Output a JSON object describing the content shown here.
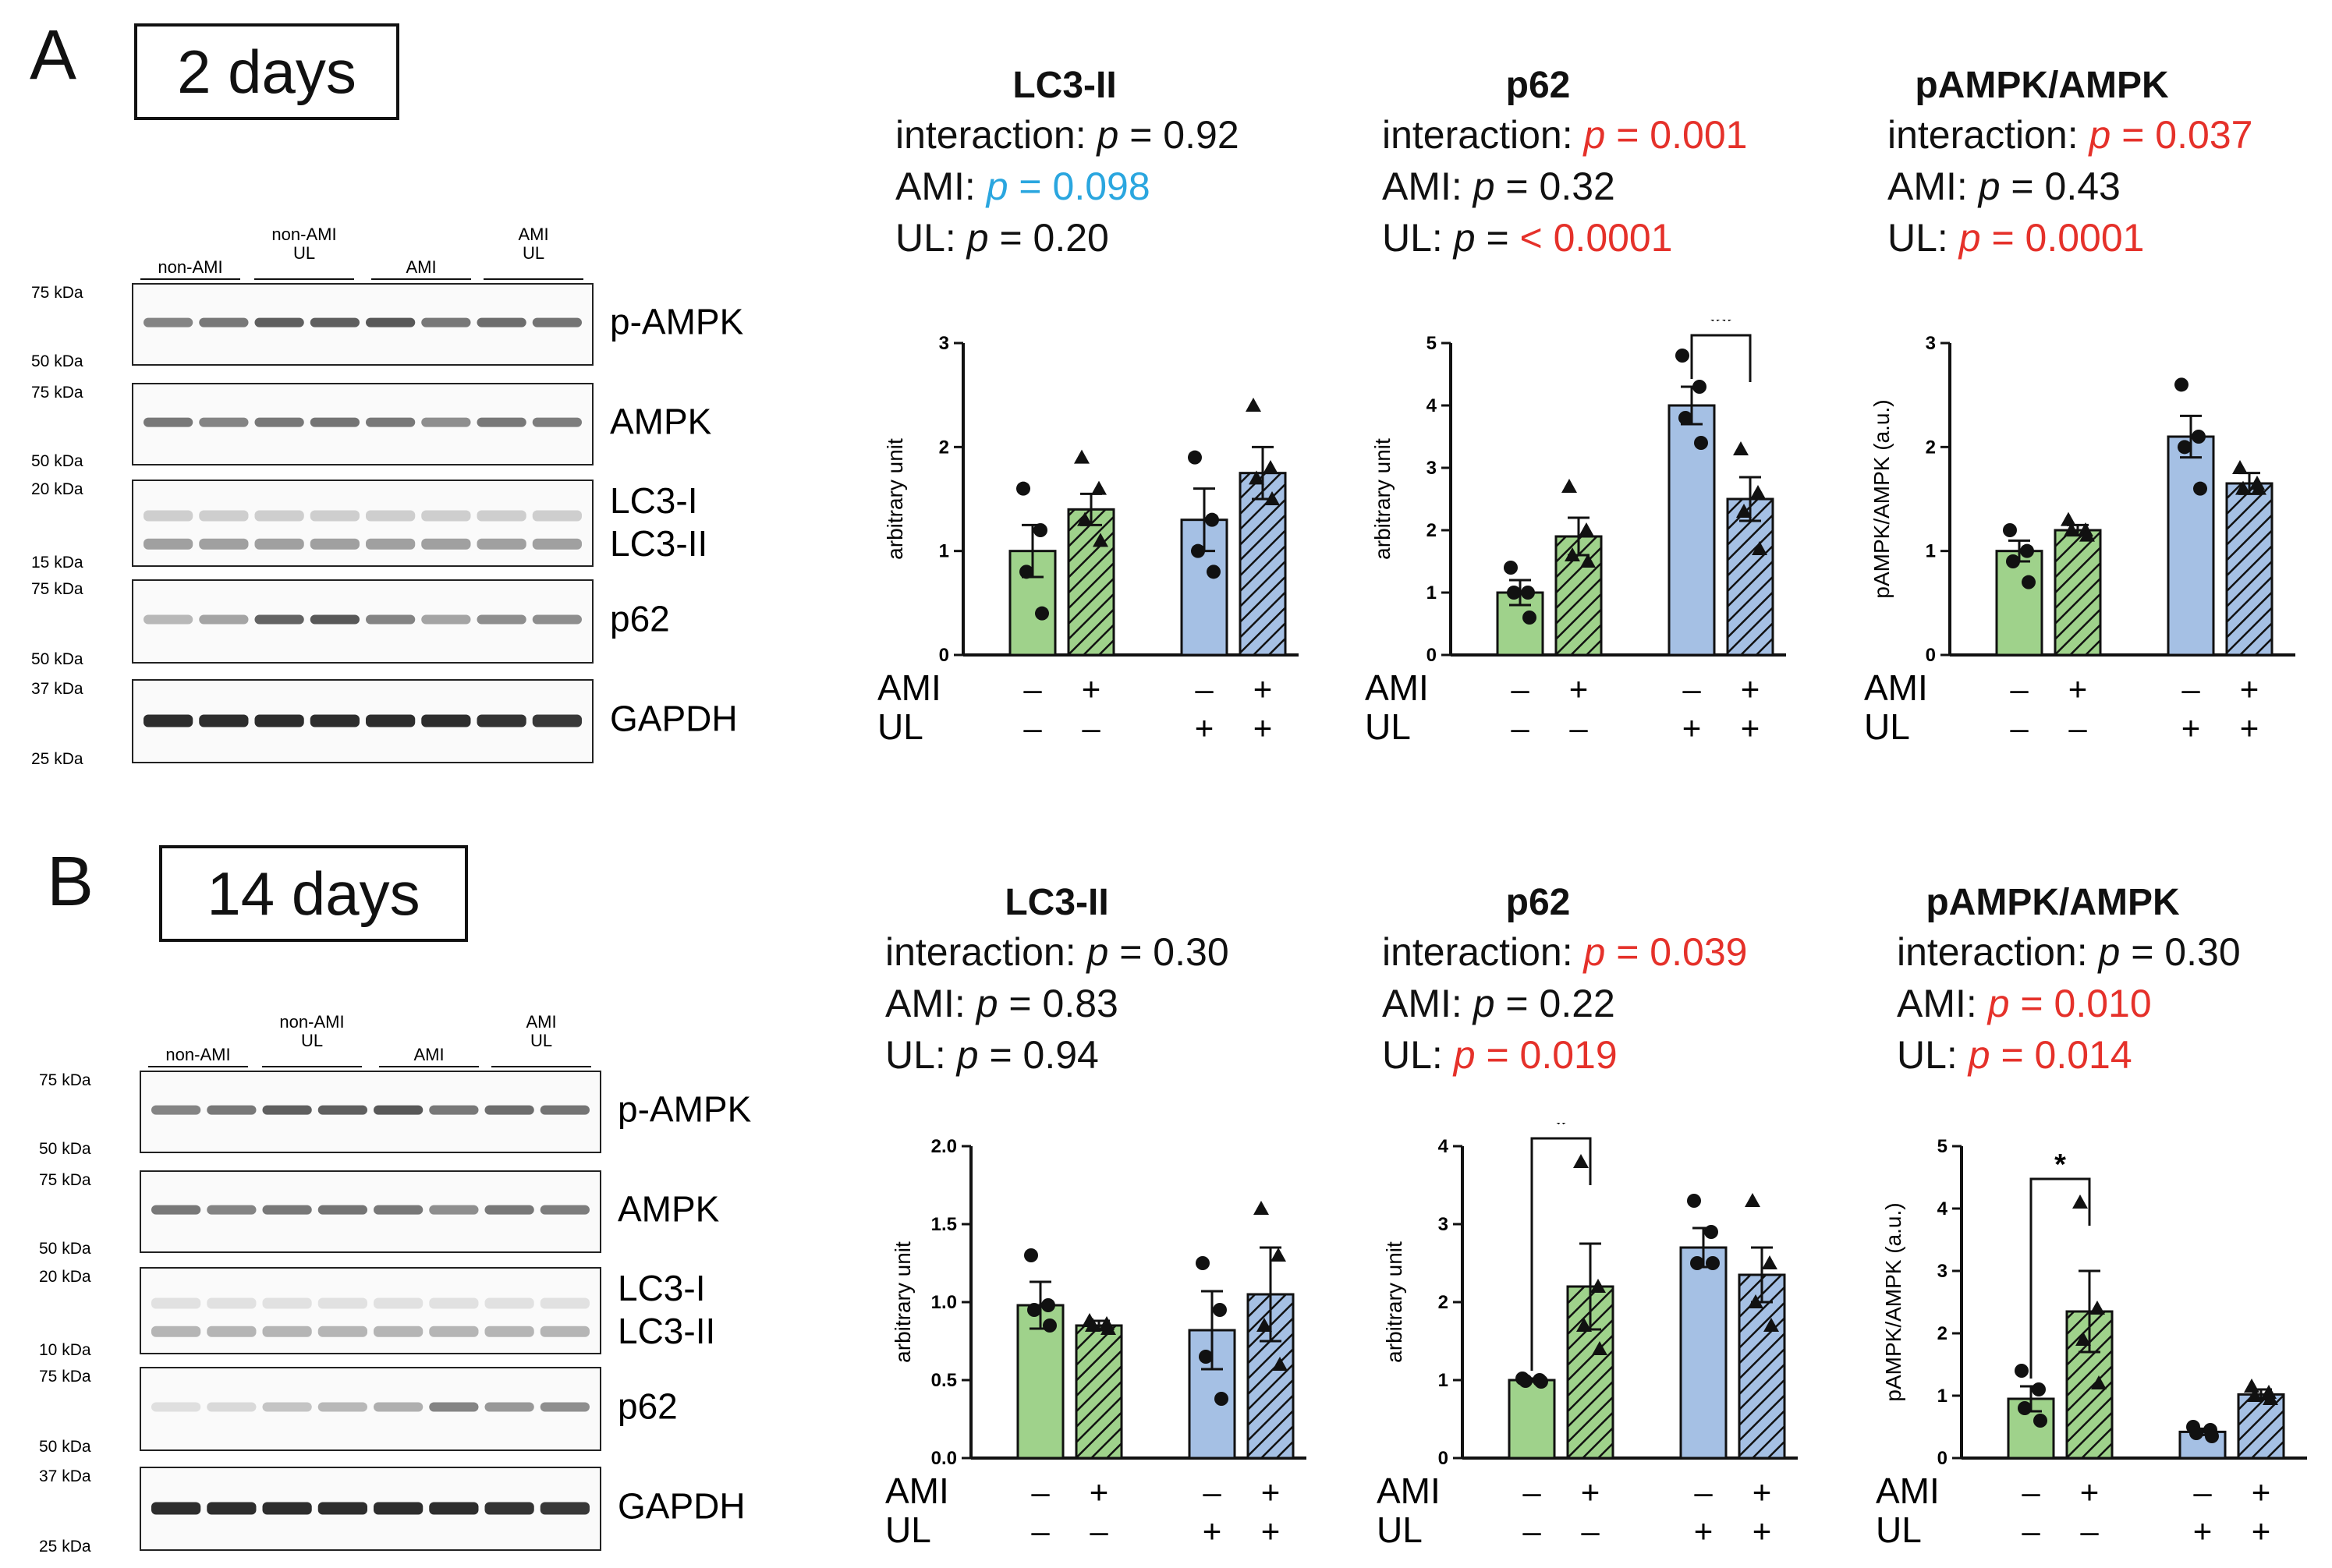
{
  "panels": [
    {
      "letter": "A",
      "days_label": "2 days",
      "western_blot": {
        "group_labels": [
          [
            "non-AMI"
          ],
          [
            "non-AMI",
            "UL"
          ],
          [
            "AMI"
          ],
          [
            "AMI",
            "UL"
          ]
        ],
        "rows": [
          {
            "protein": "p-AMPK",
            "markers": [
              "75 kDa",
              "50 kDa"
            ]
          },
          {
            "protein": "AMPK",
            "markers": [
              "75 kDa",
              "50 kDa"
            ]
          },
          {
            "protein": "LC3-I",
            "protein2": "LC3-II",
            "markers": [
              "20 kDa",
              "15 kDa"
            ]
          },
          {
            "protein": "p62",
            "markers": [
              "75 kDa",
              "50 kDa"
            ]
          },
          {
            "protein": "GAPDH",
            "markers": [
              "37 kDa",
              "25 kDa"
            ]
          }
        ]
      },
      "stats": [
        {
          "title": "LC3-II",
          "lines": [
            {
              "label": "interaction:",
              "p": "p",
              "value": "= 0.92",
              "sig": ""
            },
            {
              "label": "AMI:",
              "p": "p",
              "value": "= 0.098",
              "sig": "blue"
            },
            {
              "label": "UL:",
              "p": "p",
              "value": "= 0.20",
              "sig": ""
            }
          ]
        },
        {
          "title": "p62",
          "lines": [
            {
              "label": "interaction:",
              "p": "p",
              "value": "= 0.001",
              "sig": "red"
            },
            {
              "label": "AMI:",
              "p": "p",
              "value": "= 0.32",
              "sig": ""
            },
            {
              "label": "UL:",
              "p": "p",
              "value": "= < 0.0001",
              "sig": "red_partial"
            }
          ]
        },
        {
          "title": "pAMPK/AMPK",
          "lines": [
            {
              "label": "interaction:",
              "p": "p",
              "value": "= 0.037",
              "sig": "red"
            },
            {
              "label": "AMI:",
              "p": "p",
              "value": "= 0.43",
              "sig": ""
            },
            {
              "label": "UL:",
              "p": "p",
              "value": "= 0.0001",
              "sig": "red"
            }
          ]
        }
      ]
    },
    {
      "letter": "B",
      "days_label": "14 days",
      "western_blot": {
        "group_labels": [
          [
            "non-AMI"
          ],
          [
            "non-AMI",
            "UL"
          ],
          [
            "AMI"
          ],
          [
            "AMI",
            "UL"
          ]
        ],
        "rows": [
          {
            "protein": "p-AMPK",
            "markers": [
              "75 kDa",
              "50 kDa"
            ]
          },
          {
            "protein": "AMPK",
            "markers": [
              "75 kDa",
              "50 kDa"
            ]
          },
          {
            "protein": "LC3-I",
            "protein2": "LC3-II",
            "markers": [
              "20 kDa",
              "10 kDa"
            ]
          },
          {
            "protein": "p62",
            "markers": [
              "75 kDa",
              "50 kDa"
            ]
          },
          {
            "protein": "GAPDH",
            "markers": [
              "37 kDa",
              "25 kDa"
            ]
          }
        ]
      },
      "stats": [
        {
          "title": "LC3-II",
          "lines": [
            {
              "label": "interaction:",
              "p": "p",
              "value": "= 0.30",
              "sig": ""
            },
            {
              "label": "AMI:",
              "p": "p",
              "value": "= 0.83",
              "sig": ""
            },
            {
              "label": "UL:",
              "p": "p",
              "value": "= 0.94",
              "sig": ""
            }
          ]
        },
        {
          "title": "p62",
          "lines": [
            {
              "label": "interaction:",
              "p": "p",
              "value": "= 0.039",
              "sig": "red"
            },
            {
              "label": "AMI:",
              "p": "p",
              "value": "= 0.22",
              "sig": ""
            },
            {
              "label": "UL:",
              "p": "p",
              "value": "= 0.019",
              "sig": "red"
            }
          ]
        },
        {
          "title": "pAMPK/AMPK",
          "lines": [
            {
              "label": "interaction:",
              "p": "p",
              "value": "= 0.30",
              "sig": ""
            },
            {
              "label": "AMI:",
              "p": "p",
              "value": "= 0.010",
              "sig": "red"
            },
            {
              "label": "UL:",
              "p": "p",
              "value": "= 0.014",
              "sig": "red"
            }
          ]
        }
      ]
    }
  ],
  "colors": {
    "green": "#9fd28b",
    "blue": "#a5c0e4",
    "red": "#e5312a",
    "cyan": "#2aa6df"
  },
  "chart_data": [
    {
      "type": "bar",
      "panel": "A",
      "title": "LC3-II",
      "ylabel": "arbitrary unit",
      "ylim": [
        0,
        3
      ],
      "yticks": [
        "0",
        "1",
        "2",
        "3"
      ],
      "groups": [
        {
          "AMI": "–",
          "UL": "–",
          "color": "green",
          "pattern": "solid",
          "value": 1.0,
          "sem": 0.25,
          "points": [
            1.6,
            1.2,
            0.8,
            0.4
          ],
          "marker": "circle"
        },
        {
          "AMI": "+",
          "UL": "–",
          "color": "green",
          "pattern": "hatch",
          "value": 1.4,
          "sem": 0.15,
          "points": [
            1.9,
            1.6,
            1.3,
            1.1
          ],
          "marker": "triangle"
        },
        {
          "AMI": "–",
          "UL": "+",
          "color": "blue",
          "pattern": "solid",
          "value": 1.3,
          "sem": 0.3,
          "points": [
            1.9,
            1.3,
            1.0,
            0.8
          ],
          "marker": "circle"
        },
        {
          "AMI": "+",
          "UL": "+",
          "color": "blue",
          "pattern": "hatch",
          "value": 1.75,
          "sem": 0.25,
          "points": [
            2.4,
            1.8,
            1.7,
            1.5
          ],
          "marker": "triangle"
        }
      ],
      "significance": []
    },
    {
      "type": "bar",
      "panel": "A",
      "title": "p62",
      "ylabel": "arbitrary unit",
      "ylim": [
        0,
        5
      ],
      "yticks": [
        "0",
        "1",
        "2",
        "3",
        "4",
        "5"
      ],
      "groups": [
        {
          "AMI": "–",
          "UL": "–",
          "color": "green",
          "pattern": "solid",
          "value": 1.0,
          "sem": 0.2,
          "points": [
            1.4,
            1.0,
            1.0,
            0.6
          ],
          "marker": "circle"
        },
        {
          "AMI": "+",
          "UL": "–",
          "color": "green",
          "pattern": "hatch",
          "value": 1.9,
          "sem": 0.3,
          "points": [
            2.7,
            2.0,
            1.6,
            1.5
          ],
          "marker": "triangle"
        },
        {
          "AMI": "–",
          "UL": "+",
          "color": "blue",
          "pattern": "solid",
          "value": 4.0,
          "sem": 0.3,
          "points": [
            4.8,
            4.3,
            3.8,
            3.4
          ],
          "marker": "circle"
        },
        {
          "AMI": "+",
          "UL": "+",
          "color": "blue",
          "pattern": "hatch",
          "value": 2.5,
          "sem": 0.35,
          "points": [
            3.3,
            2.6,
            2.3,
            1.7
          ],
          "marker": "triangle"
        }
      ],
      "significance": [
        {
          "from": 2,
          "to": 3,
          "label": "**"
        }
      ]
    },
    {
      "type": "bar",
      "panel": "A",
      "title": "pAMPK/AMPK",
      "ylabel": "pAMPK/AMPK (a.u.)",
      "ylim": [
        0,
        3
      ],
      "yticks": [
        "0",
        "1",
        "2",
        "3"
      ],
      "groups": [
        {
          "AMI": "–",
          "UL": "–",
          "color": "green",
          "pattern": "solid",
          "value": 1.0,
          "sem": 0.1,
          "points": [
            1.2,
            1.0,
            0.9,
            0.7
          ],
          "marker": "circle"
        },
        {
          "AMI": "+",
          "UL": "–",
          "color": "green",
          "pattern": "hatch",
          "value": 1.2,
          "sem": 0.05,
          "points": [
            1.3,
            1.2,
            1.2,
            1.15
          ],
          "marker": "triangle"
        },
        {
          "AMI": "–",
          "UL": "+",
          "color": "blue",
          "pattern": "solid",
          "value": 2.1,
          "sem": 0.2,
          "points": [
            2.6,
            2.1,
            2.0,
            1.6
          ],
          "marker": "circle"
        },
        {
          "AMI": "+",
          "UL": "+",
          "color": "blue",
          "pattern": "hatch",
          "value": 1.65,
          "sem": 0.1,
          "points": [
            1.8,
            1.65,
            1.6,
            1.6
          ],
          "marker": "triangle"
        }
      ],
      "significance": []
    },
    {
      "type": "bar",
      "panel": "B",
      "title": "LC3-II",
      "ylabel": "arbitrary unit",
      "ylim": [
        0,
        2.0
      ],
      "yticks": [
        "0.0",
        "0.5",
        "1.0",
        "1.5",
        "2.0"
      ],
      "groups": [
        {
          "AMI": "–",
          "UL": "–",
          "color": "green",
          "pattern": "solid",
          "value": 0.98,
          "sem": 0.15,
          "points": [
            1.3,
            0.98,
            0.95,
            0.85
          ],
          "marker": "circle"
        },
        {
          "AMI": "+",
          "UL": "–",
          "color": "green",
          "pattern": "hatch",
          "value": 0.85,
          "sem": 0.03,
          "points": [
            0.88,
            0.86,
            0.85,
            0.83
          ],
          "marker": "triangle"
        },
        {
          "AMI": "–",
          "UL": "+",
          "color": "blue",
          "pattern": "solid",
          "value": 0.82,
          "sem": 0.25,
          "points": [
            1.25,
            0.95,
            0.65,
            0.38
          ],
          "marker": "circle"
        },
        {
          "AMI": "+",
          "UL": "+",
          "color": "blue",
          "pattern": "hatch",
          "value": 1.05,
          "sem": 0.3,
          "points": [
            1.6,
            1.3,
            0.85,
            0.6
          ],
          "marker": "triangle"
        }
      ],
      "significance": []
    },
    {
      "type": "bar",
      "panel": "B",
      "title": "p62",
      "ylabel": "arbitrary unit",
      "ylim": [
        0,
        4
      ],
      "yticks": [
        "0",
        "1",
        "2",
        "3",
        "4"
      ],
      "groups": [
        {
          "AMI": "–",
          "UL": "–",
          "color": "green",
          "pattern": "solid",
          "value": 1.0,
          "sem": 0.02,
          "points": [
            1.02,
            1.0,
            0.99,
            0.98
          ],
          "marker": "circle"
        },
        {
          "AMI": "+",
          "UL": "–",
          "color": "green",
          "pattern": "hatch",
          "value": 2.2,
          "sem": 0.55,
          "points": [
            3.8,
            2.2,
            1.7,
            1.4
          ],
          "marker": "triangle"
        },
        {
          "AMI": "–",
          "UL": "+",
          "color": "blue",
          "pattern": "solid",
          "value": 2.7,
          "sem": 0.25,
          "points": [
            3.3,
            2.9,
            2.5,
            2.5
          ],
          "marker": "circle"
        },
        {
          "AMI": "+",
          "UL": "+",
          "color": "blue",
          "pattern": "hatch",
          "value": 2.35,
          "sem": 0.35,
          "points": [
            3.3,
            2.5,
            2.0,
            1.7
          ],
          "marker": "triangle"
        }
      ],
      "significance": [
        {
          "from": 0,
          "to": 1,
          "label": "*"
        }
      ]
    },
    {
      "type": "bar",
      "panel": "B",
      "title": "pAMPK/AMPK",
      "ylabel": "pAMPK/AMPK (a.u.)",
      "ylim": [
        0,
        5
      ],
      "yticks": [
        "0",
        "1",
        "2",
        "3",
        "4",
        "5"
      ],
      "groups": [
        {
          "AMI": "–",
          "UL": "–",
          "color": "green",
          "pattern": "solid",
          "value": 0.95,
          "sem": 0.2,
          "points": [
            1.4,
            1.1,
            0.8,
            0.6
          ],
          "marker": "circle"
        },
        {
          "AMI": "+",
          "UL": "–",
          "color": "green",
          "pattern": "hatch",
          "value": 2.35,
          "sem": 0.65,
          "points": [
            4.1,
            2.4,
            1.9,
            1.2
          ],
          "marker": "triangle"
        },
        {
          "AMI": "–",
          "UL": "+",
          "color": "blue",
          "pattern": "solid",
          "value": 0.42,
          "sem": 0.05,
          "points": [
            0.5,
            0.45,
            0.4,
            0.35
          ],
          "marker": "circle"
        },
        {
          "AMI": "+",
          "UL": "+",
          "color": "blue",
          "pattern": "hatch",
          "value": 1.02,
          "sem": 0.08,
          "points": [
            1.15,
            1.05,
            1.0,
            0.95
          ],
          "marker": "triangle"
        }
      ],
      "significance": [
        {
          "from": 0,
          "to": 1,
          "label": "*"
        }
      ]
    }
  ],
  "axis_rows": {
    "ami_label": "AMI",
    "ul_label": "UL"
  }
}
